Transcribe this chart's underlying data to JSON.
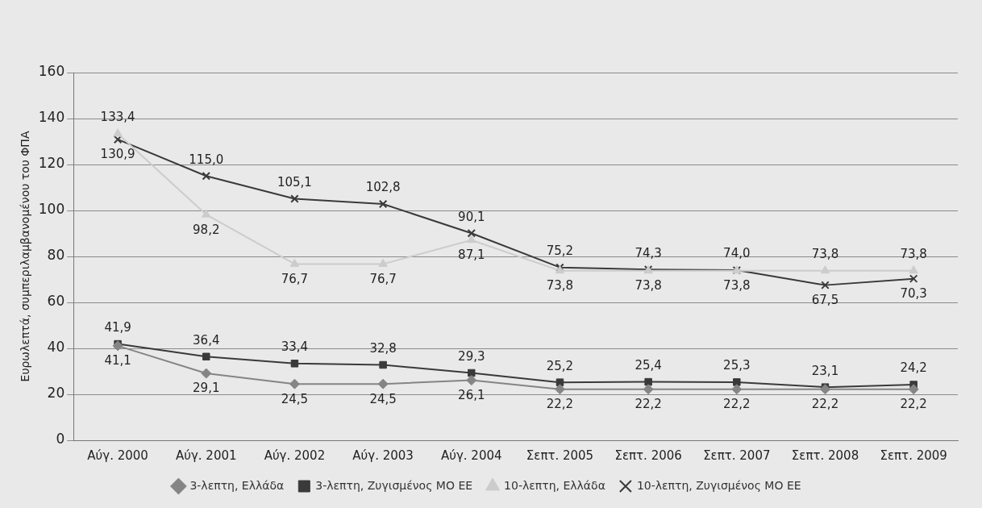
{
  "chart_data": {
    "type": "line",
    "ylabel": "Ευρωλεπτά, συμπεριλαμβανομένου του ΦΠΑ",
    "categories": [
      "Αύγ. 2000",
      "Αύγ. 2001",
      "Αύγ. 2002",
      "Αύγ. 2003",
      "Αύγ. 2004",
      "Σεπτ. 2005",
      "Σεπτ. 2006",
      "Σεπτ. 2007",
      "Σεπτ. 2008",
      "Σεπτ. 2009"
    ],
    "series": [
      {
        "name": "3-λεπτη, Ελλάδα",
        "color": "#858585",
        "marker": "diamond",
        "values": [
          41.1,
          29.1,
          24.5,
          24.5,
          26.1,
          22.2,
          22.2,
          22.2,
          22.2,
          22.2
        ],
        "value_labels": [
          "41,1",
          "29,1",
          "24,5",
          "24,5",
          "26,1",
          "22,2",
          "22,2",
          "22,2",
          "22,2",
          "22,2"
        ]
      },
      {
        "name": "3-λεπτη, Ζυγισμένος ΜΟ ΕΕ",
        "color": "#3a3a3a",
        "marker": "square",
        "values": [
          41.9,
          36.4,
          33.4,
          32.8,
          29.3,
          25.2,
          25.4,
          25.3,
          23.1,
          24.2
        ],
        "value_labels": [
          "41,9",
          "36,4",
          "33,4",
          "32,8",
          "29,3",
          "25,2",
          "25,4",
          "25,3",
          "23,1",
          "24,2"
        ]
      },
      {
        "name": "10-λεπτη, Ελλάδα",
        "color": "#cccccc",
        "marker": "triangle",
        "values": [
          133.4,
          98.2,
          76.7,
          76.7,
          87.1,
          73.8,
          73.8,
          73.8,
          73.8,
          73.8
        ],
        "value_labels": [
          "133,4",
          "98,2",
          "76,7",
          "76,7",
          "87,1",
          "73,8",
          "73,8",
          "73,8",
          "73,8",
          "73,8"
        ]
      },
      {
        "name": "10-λεπτη, Ζυγισμένος ΜΟ ΕΕ",
        "color": "#3a3a3a",
        "marker": "cross",
        "values": [
          130.9,
          115.0,
          105.1,
          102.8,
          90.1,
          75.2,
          74.3,
          74.0,
          67.5,
          70.3
        ],
        "value_labels": [
          "130,9",
          "115,0",
          "105,1",
          "102,8",
          "90,1",
          "75,2",
          "74,3",
          "74,0",
          "67,5",
          "70,3"
        ]
      }
    ],
    "ylim": [
      0,
      160
    ],
    "yticks": [
      0,
      20,
      40,
      60,
      80,
      100,
      120,
      140,
      160
    ],
    "grid": "y",
    "legend": "bottom",
    "line_style": "solid"
  }
}
